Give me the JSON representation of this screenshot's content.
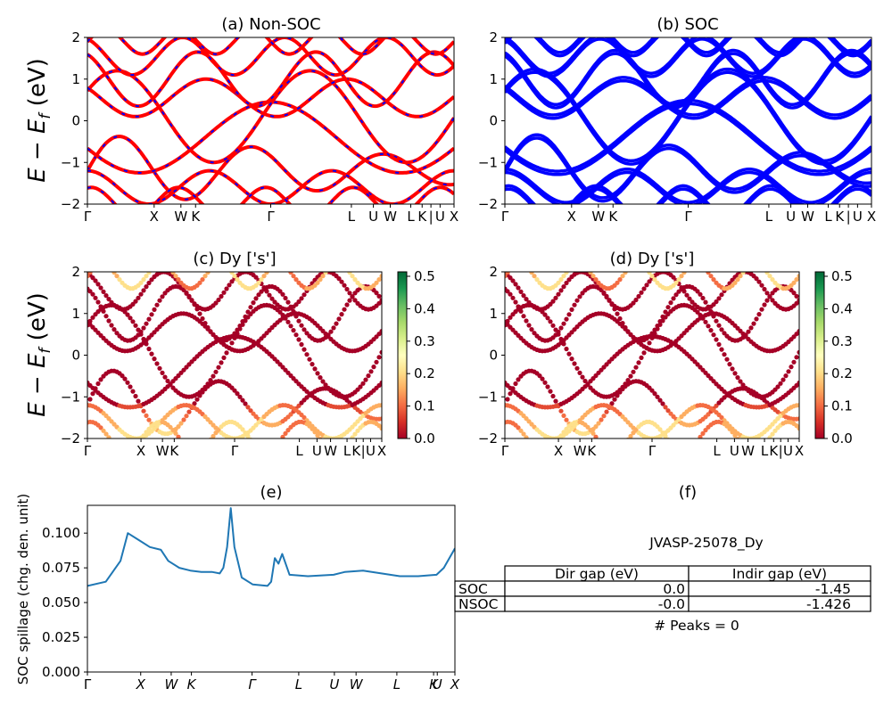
{
  "kpath_labels": [
    "Γ",
    "X",
    "W",
    "K",
    "Γ",
    "L",
    "U",
    "W",
    "L",
    "K",
    "|",
    "U",
    "X"
  ],
  "y_ticks_energy": [
    "2",
    "1",
    "0",
    "−1",
    "−2"
  ],
  "energy_ylabel": "E − E_f (eV)",
  "panels": {
    "a": {
      "title": "(a) Non-SOC",
      "colors": [
        "#ff0000",
        "#0000ff"
      ]
    },
    "b": {
      "title": "(b) SOC",
      "colors": [
        "#0000ff"
      ]
    },
    "c": {
      "title": "(c)  Dy ['s']"
    },
    "d": {
      "title": "(d) Dy ['s']"
    },
    "e": {
      "title": "(e)"
    },
    "f": {
      "title": "(f)"
    }
  },
  "colorbar": {
    "ticks": [
      "0.5",
      "0.4",
      "0.3",
      "0.2",
      "0.1",
      "0.0"
    ],
    "colormap": "RdYlGn"
  },
  "chart_data": [
    {
      "type": "line",
      "title": "(a) Non-SOC",
      "ylabel": "E − E_f (eV)",
      "ylim": [
        -2,
        2
      ],
      "x_ticks": [
        "Γ",
        "X",
        "W",
        "K",
        "Γ",
        "L",
        "U",
        "W",
        "L",
        "K",
        "|",
        "U",
        "X"
      ],
      "note": "electronic band structure; overlaid red solid and blue dashed bands"
    },
    {
      "type": "line",
      "title": "(b) SOC",
      "ylabel": "",
      "ylim": [
        -2,
        2
      ],
      "x_ticks": [
        "Γ",
        "X",
        "W",
        "K",
        "Γ",
        "L",
        "U",
        "W",
        "L",
        "K",
        "|",
        "U",
        "X"
      ]
    },
    {
      "type": "scatter",
      "title": "(c)  Dy ['s']",
      "ylabel": "E − E_f (eV)",
      "ylim": [
        -2,
        2
      ],
      "colorbar_range": [
        0.0,
        0.5
      ],
      "x_ticks": [
        "Γ",
        "X",
        "W",
        "K",
        "Γ",
        "L",
        "U",
        "W",
        "L",
        "K",
        "|",
        "U",
        "X"
      ]
    },
    {
      "type": "scatter",
      "title": "(d) Dy ['s']",
      "ylabel": "",
      "ylim": [
        -2,
        2
      ],
      "colorbar_range": [
        0.0,
        0.5
      ],
      "x_ticks": [
        "Γ",
        "X",
        "W",
        "K",
        "Γ",
        "L",
        "U",
        "W",
        "L",
        "K",
        "|",
        "U",
        "X"
      ]
    },
    {
      "type": "line",
      "title": "(e)",
      "ylabel": "SOC spillage (chg. den. unit)",
      "ylim": [
        0,
        0.12
      ],
      "y_ticks": [
        "0.100",
        "0.075",
        "0.050",
        "0.025",
        "0.000"
      ],
      "x_ticks": [
        "Γ",
        "X",
        "W",
        "K",
        "Γ",
        "L",
        "U",
        "W",
        "L",
        "K",
        "U",
        "X"
      ],
      "series": [
        {
          "x": [
            0,
            0.05,
            0.09,
            0.11,
            0.14,
            0.17,
            0.2,
            0.22,
            0.25,
            0.28,
            0.31,
            0.34,
            0.36,
            0.37,
            0.38,
            0.39,
            0.4,
            0.42,
            0.45,
            0.49,
            0.5,
            0.51,
            0.52,
            0.53,
            0.55,
            0.6,
            0.67,
            0.7,
            0.75,
            0.8,
            0.85,
            0.9,
            0.95,
            0.97,
            1.0
          ],
          "values": [
            0.062,
            0.065,
            0.08,
            0.1,
            0.095,
            0.09,
            0.088,
            0.08,
            0.075,
            0.073,
            0.072,
            0.072,
            0.071,
            0.075,
            0.09,
            0.118,
            0.09,
            0.068,
            0.063,
            0.062,
            0.065,
            0.082,
            0.078,
            0.085,
            0.07,
            0.069,
            0.07,
            0.072,
            0.073,
            0.071,
            0.069,
            0.069,
            0.07,
            0.075,
            0.089
          ],
          "color": "#1f77b4"
        }
      ]
    },
    {
      "type": "table",
      "title": "(f)",
      "caption": "JVASP-25078_Dy",
      "columns": [
        "Dir gap (eV)",
        "Indir gap (eV)"
      ],
      "rows": [
        {
          "label": "SOC",
          "values": [
            "0.0",
            "-1.45"
          ]
        },
        {
          "label": "NSOC",
          "values": [
            "-0.0",
            "-1.426"
          ]
        }
      ],
      "footer": "# Peaks = 0"
    }
  ]
}
